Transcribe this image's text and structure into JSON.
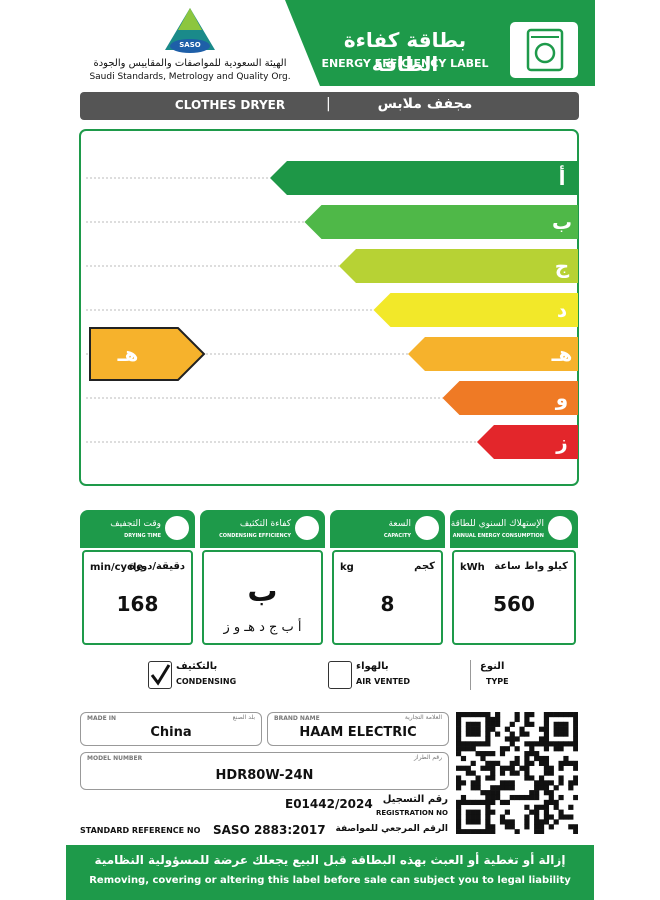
{
  "header": {
    "logo_text": "SASO",
    "org_ar": "الهيئة السعودية للمواصفات والمقاييس والجودة",
    "org_en": "Saudi Standards, Metrology and Quality Org.",
    "title_ar": "بطاقة كفاءة الطاقة",
    "title_en": "ENERGY EFFICIENCY LABEL"
  },
  "product": {
    "en": "CLOTHES DRYER",
    "ar": "مجفف ملابس"
  },
  "rating_scale": {
    "classes": [
      "أ",
      "ب",
      "ج",
      "د",
      "هـ",
      "و",
      "ز"
    ],
    "colors": [
      "#1e9747",
      "#4fb848",
      "#b7d234",
      "#f2e829",
      "#f6b22c",
      "#ef7a25",
      "#e3262b"
    ],
    "rated_class": "هـ"
  },
  "metrics": [
    {
      "title_ar": "وقت التجفيف",
      "title_en": "DRYING TIME",
      "unit_en": "min/cycle",
      "unit_ar": "دقيقة/دورة",
      "value": "168"
    },
    {
      "title_ar": "كفاءة التكثيف",
      "title_en": "CONDENSING EFFICIENCY",
      "value": "ب",
      "scale": "أ ب ج د هـ و ز"
    },
    {
      "title_ar": "السعة",
      "title_en": "CAPACITY",
      "unit_en": "kg",
      "unit_ar": "كجم",
      "value": "8"
    },
    {
      "title_ar": "الإستهلاك السنوي للطاقة",
      "title_en": "ANNUAL ENERGY CONSUMPTION",
      "unit_en": "kWh",
      "unit_ar": "كيلو واط ساعة",
      "value": "560"
    }
  ],
  "type": {
    "label_ar": "النوع",
    "label_en": "TYPE",
    "options": [
      {
        "ar": "بالتكثيف",
        "en": "CONDENSING",
        "checked": true
      },
      {
        "ar": "بالهواء",
        "en": "AIR VENTED",
        "checked": false
      }
    ]
  },
  "info": {
    "made_in": {
      "label_en": "MADE IN",
      "label_ar": "بلد الصنع",
      "value": "China"
    },
    "brand": {
      "label_en": "BRAND NAME",
      "label_ar": "العلامة التجارية",
      "value": "HAAM ELECTRIC"
    },
    "model": {
      "label_en": "MODEL NUMBER",
      "label_ar": "رقم الطراز",
      "value": "HDR80W-24N"
    },
    "registration": {
      "label_ar": "رقم التسجيل",
      "label_en": "REGISTRATION NO",
      "value": "E01442/2024"
    },
    "standard": {
      "label_en": "STANDARD REFERENCE NO",
      "label_ar": "الرقم المرجعي للمواصفة",
      "value": "SASO 2883:2017"
    }
  },
  "footer": {
    "ar": "إزالة أو تغطية أو العبث بهذه البطاقة قبل البيع يجعلك عرضة للمسؤولية النظامية",
    "en": "Removing, covering or altering this label before sale can subject you to legal liability"
  }
}
